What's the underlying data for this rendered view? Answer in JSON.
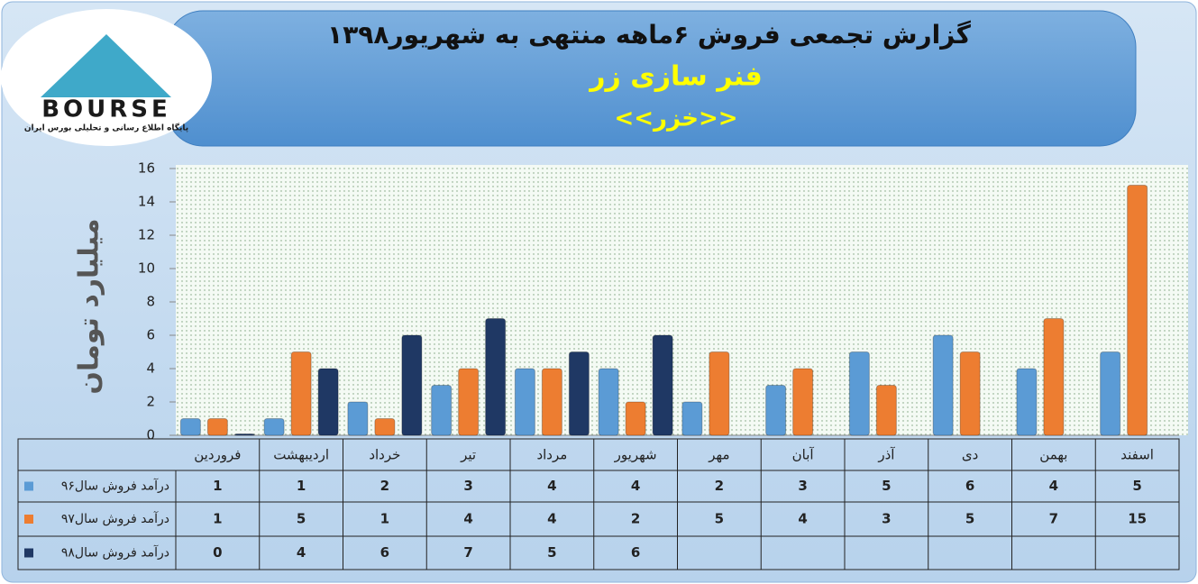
{
  "logo": {
    "name": "BOURSE",
    "tagline": "پایگاه اطلاع رسانی و تحلیلی بورس ایران"
  },
  "chart_data": {
    "type": "bar",
    "title": "گزارش تجمعی فروش ۶ماهه منتهی به شهریور۱۳۹۸",
    "subtitle": "فنر سازی زر",
    "annotation": "<<خزر>>",
    "y_label": "میلیارد تومان",
    "categories": [
      "فروردین",
      "اردیبهشت",
      "خرداد",
      "تیر",
      "مرداد",
      "شهریور",
      "مهر",
      "آبان",
      "آذر",
      "دی",
      "بهمن",
      "اسفند"
    ],
    "series": [
      {
        "name": "درآمد فروش سال۹۶",
        "color": "#5b9bd5",
        "values": [
          1,
          1,
          2,
          3,
          4,
          4,
          2,
          3,
          5,
          6,
          4,
          5
        ]
      },
      {
        "name": "درآمد فروش سال۹۷",
        "color": "#ed7d31",
        "values": [
          1,
          5,
          1,
          4,
          4,
          2,
          5,
          4,
          3,
          5,
          7,
          15
        ]
      },
      {
        "name": "درآمد فروش سال۹۸",
        "color": "#1f3864",
        "values": [
          0,
          4,
          6,
          7,
          5,
          6,
          null,
          null,
          null,
          null,
          null,
          null
        ]
      }
    ],
    "ylim": [
      0,
      16
    ],
    "yticks": [
      0,
      2,
      4,
      6,
      8,
      10,
      12,
      14,
      16
    ],
    "grid": false
  }
}
